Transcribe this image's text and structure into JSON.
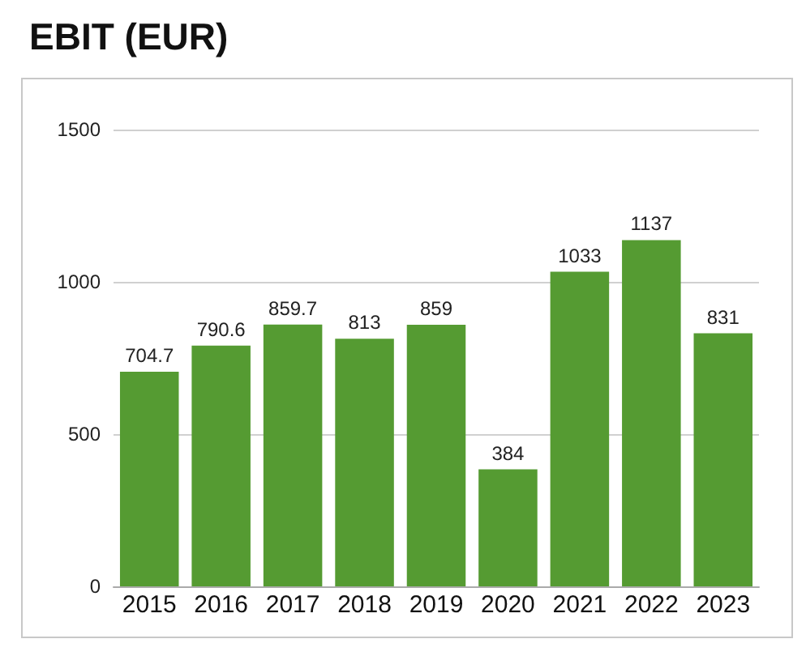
{
  "chart_data": {
    "type": "bar",
    "title": "EBIT (EUR)",
    "categories": [
      "2015",
      "2016",
      "2017",
      "2018",
      "2019",
      "2020",
      "2021",
      "2022",
      "2023"
    ],
    "values": [
      704.7,
      790.6,
      859.7,
      813,
      859,
      384,
      1033,
      1137,
      831
    ],
    "color": "#559b32",
    "ylim": [
      0,
      1500
    ],
    "yticks": [
      0,
      500,
      1000,
      1500
    ],
    "grid": "y",
    "data_labels": true
  }
}
